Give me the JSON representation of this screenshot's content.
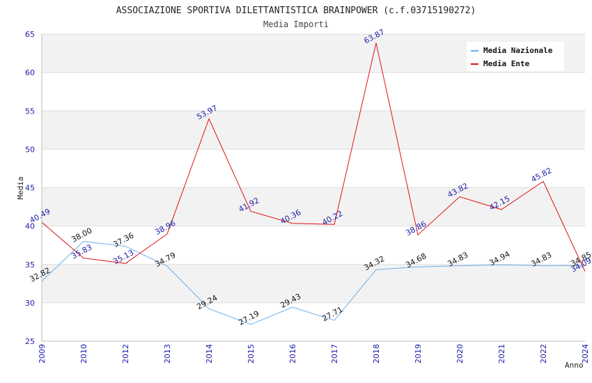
{
  "chart_data": {
    "type": "line",
    "title": "ASSOCIAZIONE SPORTIVA DILETTANTISTICA BRAINPOWER (c.f.03715190272)",
    "subtitle": "Media Importi",
    "xlabel": "Anno",
    "ylabel": "Media",
    "ylim": [
      25,
      65
    ],
    "yticks": [
      25,
      30,
      35,
      40,
      45,
      50,
      55,
      60,
      65
    ],
    "categories": [
      "2009",
      "2010",
      "2012",
      "2013",
      "2014",
      "2015",
      "2016",
      "2017",
      "2018",
      "2019",
      "2020",
      "2021",
      "2022",
      "2024"
    ],
    "grid": "horizontal bands",
    "legend_position": "top-right",
    "series": [
      {
        "name": "Media Nazionale",
        "color": "#6aaee8",
        "label_color": "#111111",
        "values": [
          32.82,
          38.0,
          37.36,
          34.79,
          29.24,
          27.19,
          29.43,
          27.71,
          34.32,
          34.68,
          34.83,
          34.94,
          34.83,
          34.85
        ],
        "labels": [
          "32.82",
          "38.00",
          "37.36",
          "34.79",
          "29.24",
          "27.19",
          "29.43",
          "27.71",
          "34.32",
          "34.68",
          "34.83",
          "34.94",
          "34.83",
          "34.85"
        ]
      },
      {
        "name": "Media Ente",
        "color": "#e01010",
        "label_color": "#1a1aa6",
        "values": [
          40.49,
          35.83,
          35.13,
          38.96,
          53.97,
          41.92,
          40.36,
          40.22,
          63.87,
          38.86,
          43.82,
          42.15,
          45.82,
          34.09
        ],
        "labels": [
          "40.49",
          "35.83",
          "35.13",
          "38.96",
          "53.97",
          "41.92",
          "40.36",
          "40.22",
          "63.87",
          "38.86",
          "43.82",
          "42.15",
          "45.82",
          "34.09"
        ]
      }
    ]
  }
}
